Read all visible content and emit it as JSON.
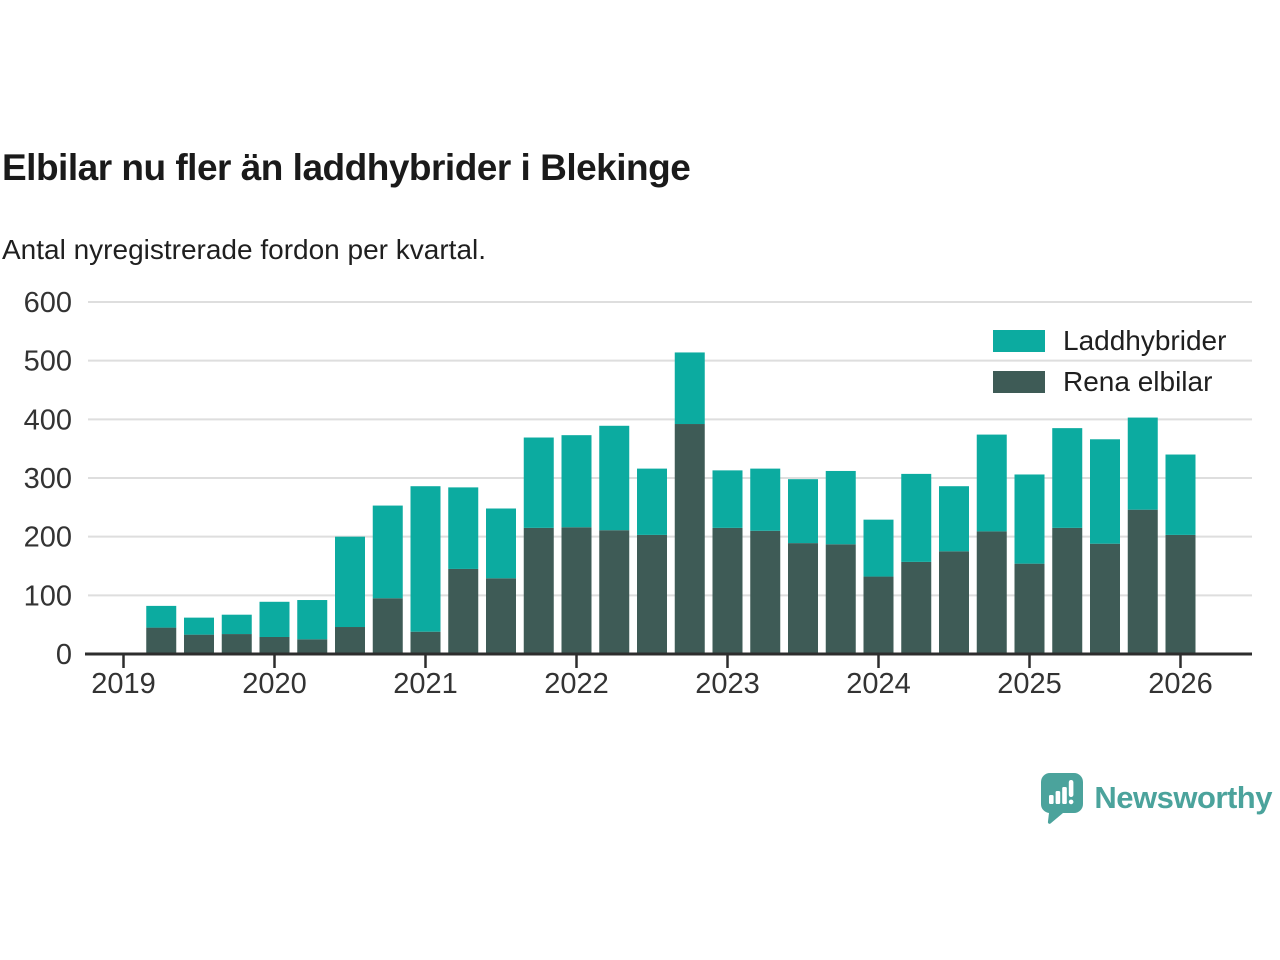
{
  "header": {
    "title": "Elbilar nu fler än laddhybrider i Blekinge",
    "subtitle": "Antal nyregistrerade fordon per kvartal."
  },
  "chart_data": {
    "type": "bar",
    "stacked": true,
    "title": "Elbilar nu fler än laddhybrider i Blekinge",
    "subtitle": "Antal nyregistrerade fordon per kvartal.",
    "categories": [
      "2019 Q2",
      "2019 Q3",
      "2019 Q4",
      "2020 Q1",
      "2020 Q2",
      "2020 Q3",
      "2020 Q4",
      "2021 Q1",
      "2021 Q2",
      "2021 Q3",
      "2021 Q4",
      "2022 Q1",
      "2022 Q2",
      "2022 Q3",
      "2022 Q4",
      "2023 Q1",
      "2023 Q2",
      "2023 Q3",
      "2023 Q4",
      "2024 Q1",
      "2024 Q2",
      "2024 Q3",
      "2024 Q4",
      "2025 Q1",
      "2025 Q2",
      "2025 Q3",
      "2025 Q4",
      "2026 Q1"
    ],
    "series": [
      {
        "name": "Laddhybrider",
        "color": "#0caba0",
        "values": [
          37,
          29,
          33,
          60,
          67,
          154,
          158,
          248,
          139,
          119,
          154,
          157,
          178,
          113,
          122,
          98,
          106,
          109,
          125,
          97,
          150,
          111,
          165,
          152,
          170,
          178,
          157,
          137
        ]
      },
      {
        "name": "Rena elbilar",
        "color": "#3e5b56",
        "values": [
          45,
          33,
          34,
          29,
          25,
          46,
          95,
          38,
          145,
          129,
          215,
          216,
          211,
          203,
          392,
          215,
          210,
          189,
          187,
          132,
          157,
          175,
          209,
          154,
          215,
          188,
          246,
          203
        ]
      }
    ],
    "stack_order": [
      "Rena elbilar",
      "Laddhybrider"
    ],
    "xlabel": "",
    "ylabel": "",
    "ylim": [
      0,
      600
    ],
    "yticks": [
      0,
      100,
      200,
      300,
      400,
      500,
      600
    ],
    "xticks": [
      "2019",
      "2020",
      "2021",
      "2022",
      "2023",
      "2024",
      "2025",
      "2026"
    ],
    "grid": true,
    "legend_position": "top-right",
    "colors": {
      "grid": "#dedede",
      "axis": "#2d2d2d",
      "tick_text": "#333333"
    }
  },
  "legend": {
    "items": [
      {
        "label": "Laddhybrider",
        "color": "#0caba0"
      },
      {
        "label": "Rena elbilar",
        "color": "#3e5b56"
      }
    ]
  },
  "footer": {
    "brand": "Newsworthy",
    "brand_color": "#4ba39c",
    "logo_icon": "newsworthy-speech-bubble-chart-icon"
  }
}
